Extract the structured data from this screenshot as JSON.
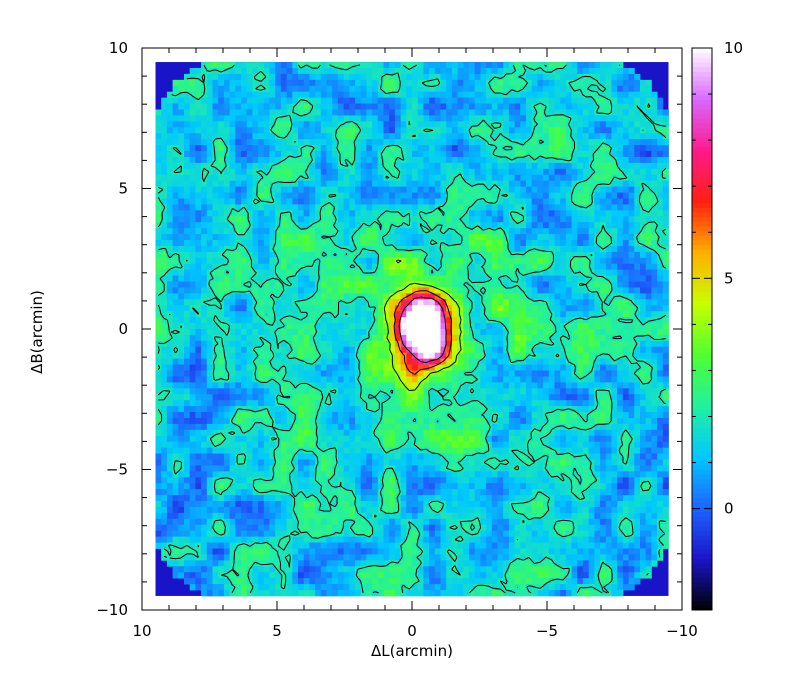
{
  "chart_data": {
    "type": "heatmap",
    "title": "",
    "xlabel": "ΔL(arcmin)",
    "ylabel": "ΔB(arcmin)",
    "xlim": [
      10,
      -10
    ],
    "ylim": [
      -10,
      10
    ],
    "x_ticks": [
      10,
      5,
      0,
      -5,
      -10
    ],
    "x_tick_labels": [
      "10",
      "5",
      "0",
      "−5",
      "−10"
    ],
    "y_ticks": [
      10,
      5,
      0,
      -5,
      -10
    ],
    "y_tick_labels": [
      "10",
      "5",
      "0",
      "−5",
      "−10"
    ],
    "colorbar": {
      "range": [
        -2.2,
        10
      ],
      "ticks": [
        10,
        5,
        0
      ],
      "tick_labels": [
        "10",
        "5",
        "0"
      ],
      "colors": [
        "#000000",
        "#1a14c8",
        "#1e64ff",
        "#00c8ff",
        "#22f0a0",
        "#50ff30",
        "#c8ff00",
        "#ffb000",
        "#ff2010",
        "#ff1a8c",
        "#d868ff",
        "#ffffff"
      ]
    },
    "map_extent": {
      "x": [
        9.5,
        -9.5
      ],
      "y": [
        -9.5,
        9.5
      ]
    },
    "source": {
      "x": -0.4,
      "y": 0.0,
      "peak": 10.0
    },
    "background_level": 1.0,
    "contour_levels": [
      2,
      4,
      6,
      8
    ],
    "grid": false
  }
}
